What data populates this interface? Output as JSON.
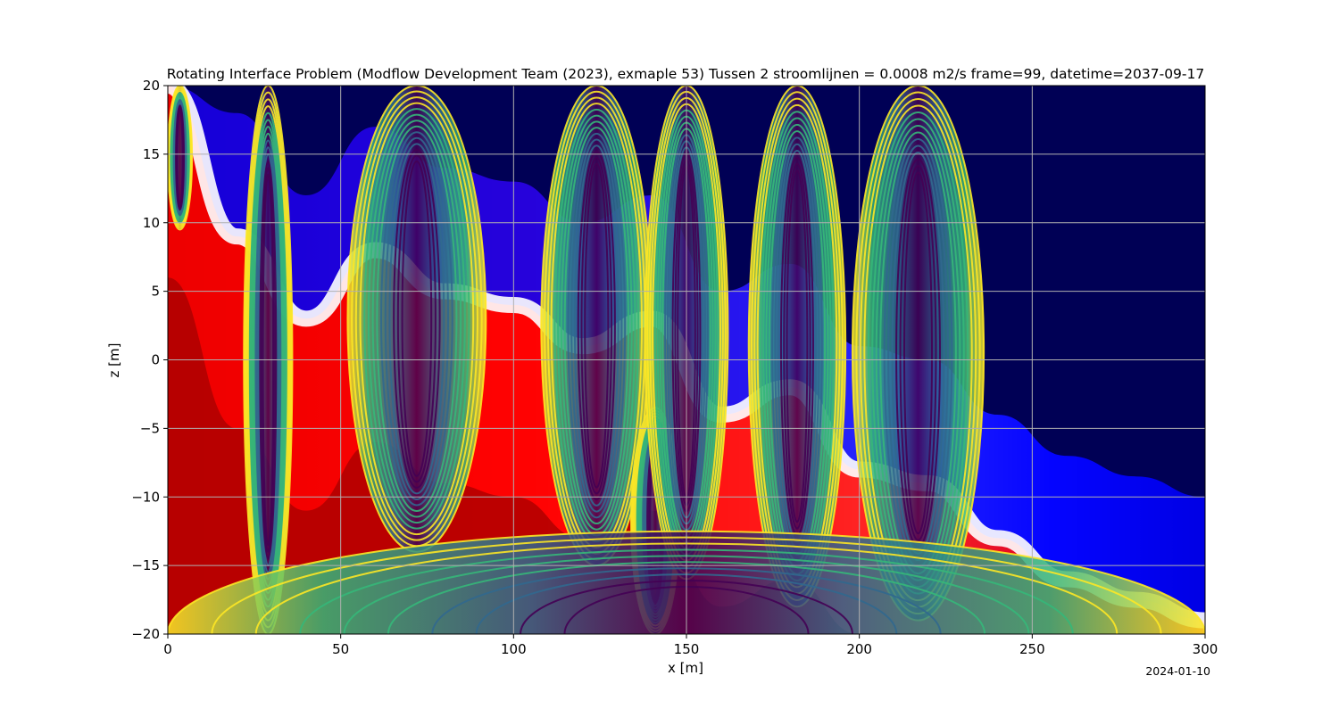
{
  "chart_data": {
    "type": "contour",
    "title": "Rotating Interface Problem (Modflow Development Team (2023), exmaple 53) Tussen 2 stroomlijnen = 0.0008 m2/s frame=99, datetime=2037-09-17",
    "xlabel": "x [m]",
    "ylabel": "z [m]",
    "xlim": [
      0,
      300
    ],
    "ylim": [
      -20,
      20
    ],
    "x_ticks": [
      {
        "value": 0,
        "label": "0"
      },
      {
        "value": 50,
        "label": "50"
      },
      {
        "value": 100,
        "label": "100"
      },
      {
        "value": 150,
        "label": "150"
      },
      {
        "value": 200,
        "label": "200"
      },
      {
        "value": 250,
        "label": "250"
      },
      {
        "value": 300,
        "label": "300"
      }
    ],
    "y_ticks": [
      {
        "value": 20,
        "label": "20"
      },
      {
        "value": 15,
        "label": "15"
      },
      {
        "value": 10,
        "label": "10"
      },
      {
        "value": 5,
        "label": "5"
      },
      {
        "value": 0,
        "label": "0"
      },
      {
        "value": -5,
        "label": "−5"
      },
      {
        "value": -10,
        "label": "−10"
      },
      {
        "value": -15,
        "label": "−15"
      },
      {
        "value": -20,
        "label": "−20"
      }
    ],
    "grid": true,
    "fill_colormap": [
      "#7a0000",
      "#ff0000",
      "#ffffff",
      "#0000ff",
      "#000050"
    ],
    "streamline_colormap": [
      "#440154",
      "#31688e",
      "#35b779",
      "#fde725"
    ],
    "interface_curve": [
      {
        "x": 0,
        "z": 20
      },
      {
        "x": 20,
        "z": 9
      },
      {
        "x": 40,
        "z": 3
      },
      {
        "x": 60,
        "z": 8
      },
      {
        "x": 80,
        "z": 5
      },
      {
        "x": 100,
        "z": 4
      },
      {
        "x": 120,
        "z": 1
      },
      {
        "x": 140,
        "z": 3
      },
      {
        "x": 160,
        "z": -4
      },
      {
        "x": 180,
        "z": -2
      },
      {
        "x": 200,
        "z": -8
      },
      {
        "x": 220,
        "z": -9
      },
      {
        "x": 240,
        "z": -13
      },
      {
        "x": 260,
        "z": -16
      },
      {
        "x": 280,
        "z": -17.5
      },
      {
        "x": 300,
        "z": -19
      }
    ],
    "streamline_plumes": [
      {
        "x_left": 22,
        "x_right": 36,
        "z_top": 20,
        "z_bottom": -20
      },
      {
        "x_left": 52,
        "x_right": 92,
        "z_top": 20,
        "z_bottom": -14
      },
      {
        "x_left": 108,
        "x_right": 140,
        "z_top": 20,
        "z_bottom": -15
      },
      {
        "x_left": 134,
        "x_right": 148,
        "z_top": -3.5,
        "z_bottom": -20
      },
      {
        "x_left": 138,
        "x_right": 162,
        "z_top": 20,
        "z_bottom": -16
      },
      {
        "x_left": 168,
        "x_right": 196,
        "z_top": 20,
        "z_bottom": -18
      },
      {
        "x_left": 198,
        "x_right": 236,
        "z_top": 20,
        "z_bottom": -19
      },
      {
        "x_left": 0,
        "x_right": 7,
        "z_top": 20,
        "z_bottom": 9.5
      },
      {
        "x_left": 0,
        "x_right": 300,
        "z_top": -12.5,
        "z_bottom": -20
      }
    ],
    "date_label": "2024-01-10"
  }
}
